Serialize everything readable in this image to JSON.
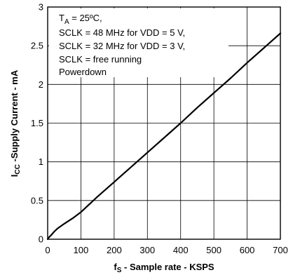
{
  "chart_data": {
    "type": "line",
    "xlabel": {
      "main": "f",
      "sub": "S",
      "rest": " - Sample rate - KSPS"
    },
    "ylabel": {
      "main": "I",
      "sub": "CC",
      "rest": " -Supply Current - mA"
    },
    "xlim": [
      0,
      700
    ],
    "ylim": [
      0,
      3
    ],
    "xticks": [
      0,
      100,
      200,
      300,
      400,
      500,
      600,
      700
    ],
    "xtick_labels": [
      "0",
      "100",
      "200",
      "300",
      "400",
      "500",
      "600",
      "700"
    ],
    "yticks": [
      0,
      0.5,
      1,
      1.5,
      2,
      2.5,
      3
    ],
    "ytick_labels": [
      "0",
      "0.5",
      "1",
      "1.5",
      "2",
      "2.5",
      "3"
    ],
    "grid": true,
    "annotation": {
      "line1": {
        "main": "T",
        "sub": "A",
        "rest": " = 25ºC,"
      },
      "line2": "SCLK = 48 MHz for VDD = 5 V,",
      "line3": "SCLK = 32 MHz for VDD = 3 V,",
      "line4": "SCLK = free running",
      "line5": "Powerdown"
    },
    "series": [
      {
        "x": [
          0,
          5,
          10,
          20,
          30,
          50,
          75,
          100,
          150,
          200,
          250,
          300,
          350,
          400,
          450,
          500,
          550,
          600,
          650,
          700
        ],
        "y": [
          0.0,
          0.03,
          0.05,
          0.1,
          0.14,
          0.2,
          0.27,
          0.35,
          0.55,
          0.74,
          0.93,
          1.12,
          1.31,
          1.5,
          1.7,
          1.89,
          2.08,
          2.28,
          2.47,
          2.66
        ],
        "color": "#000000"
      }
    ]
  }
}
